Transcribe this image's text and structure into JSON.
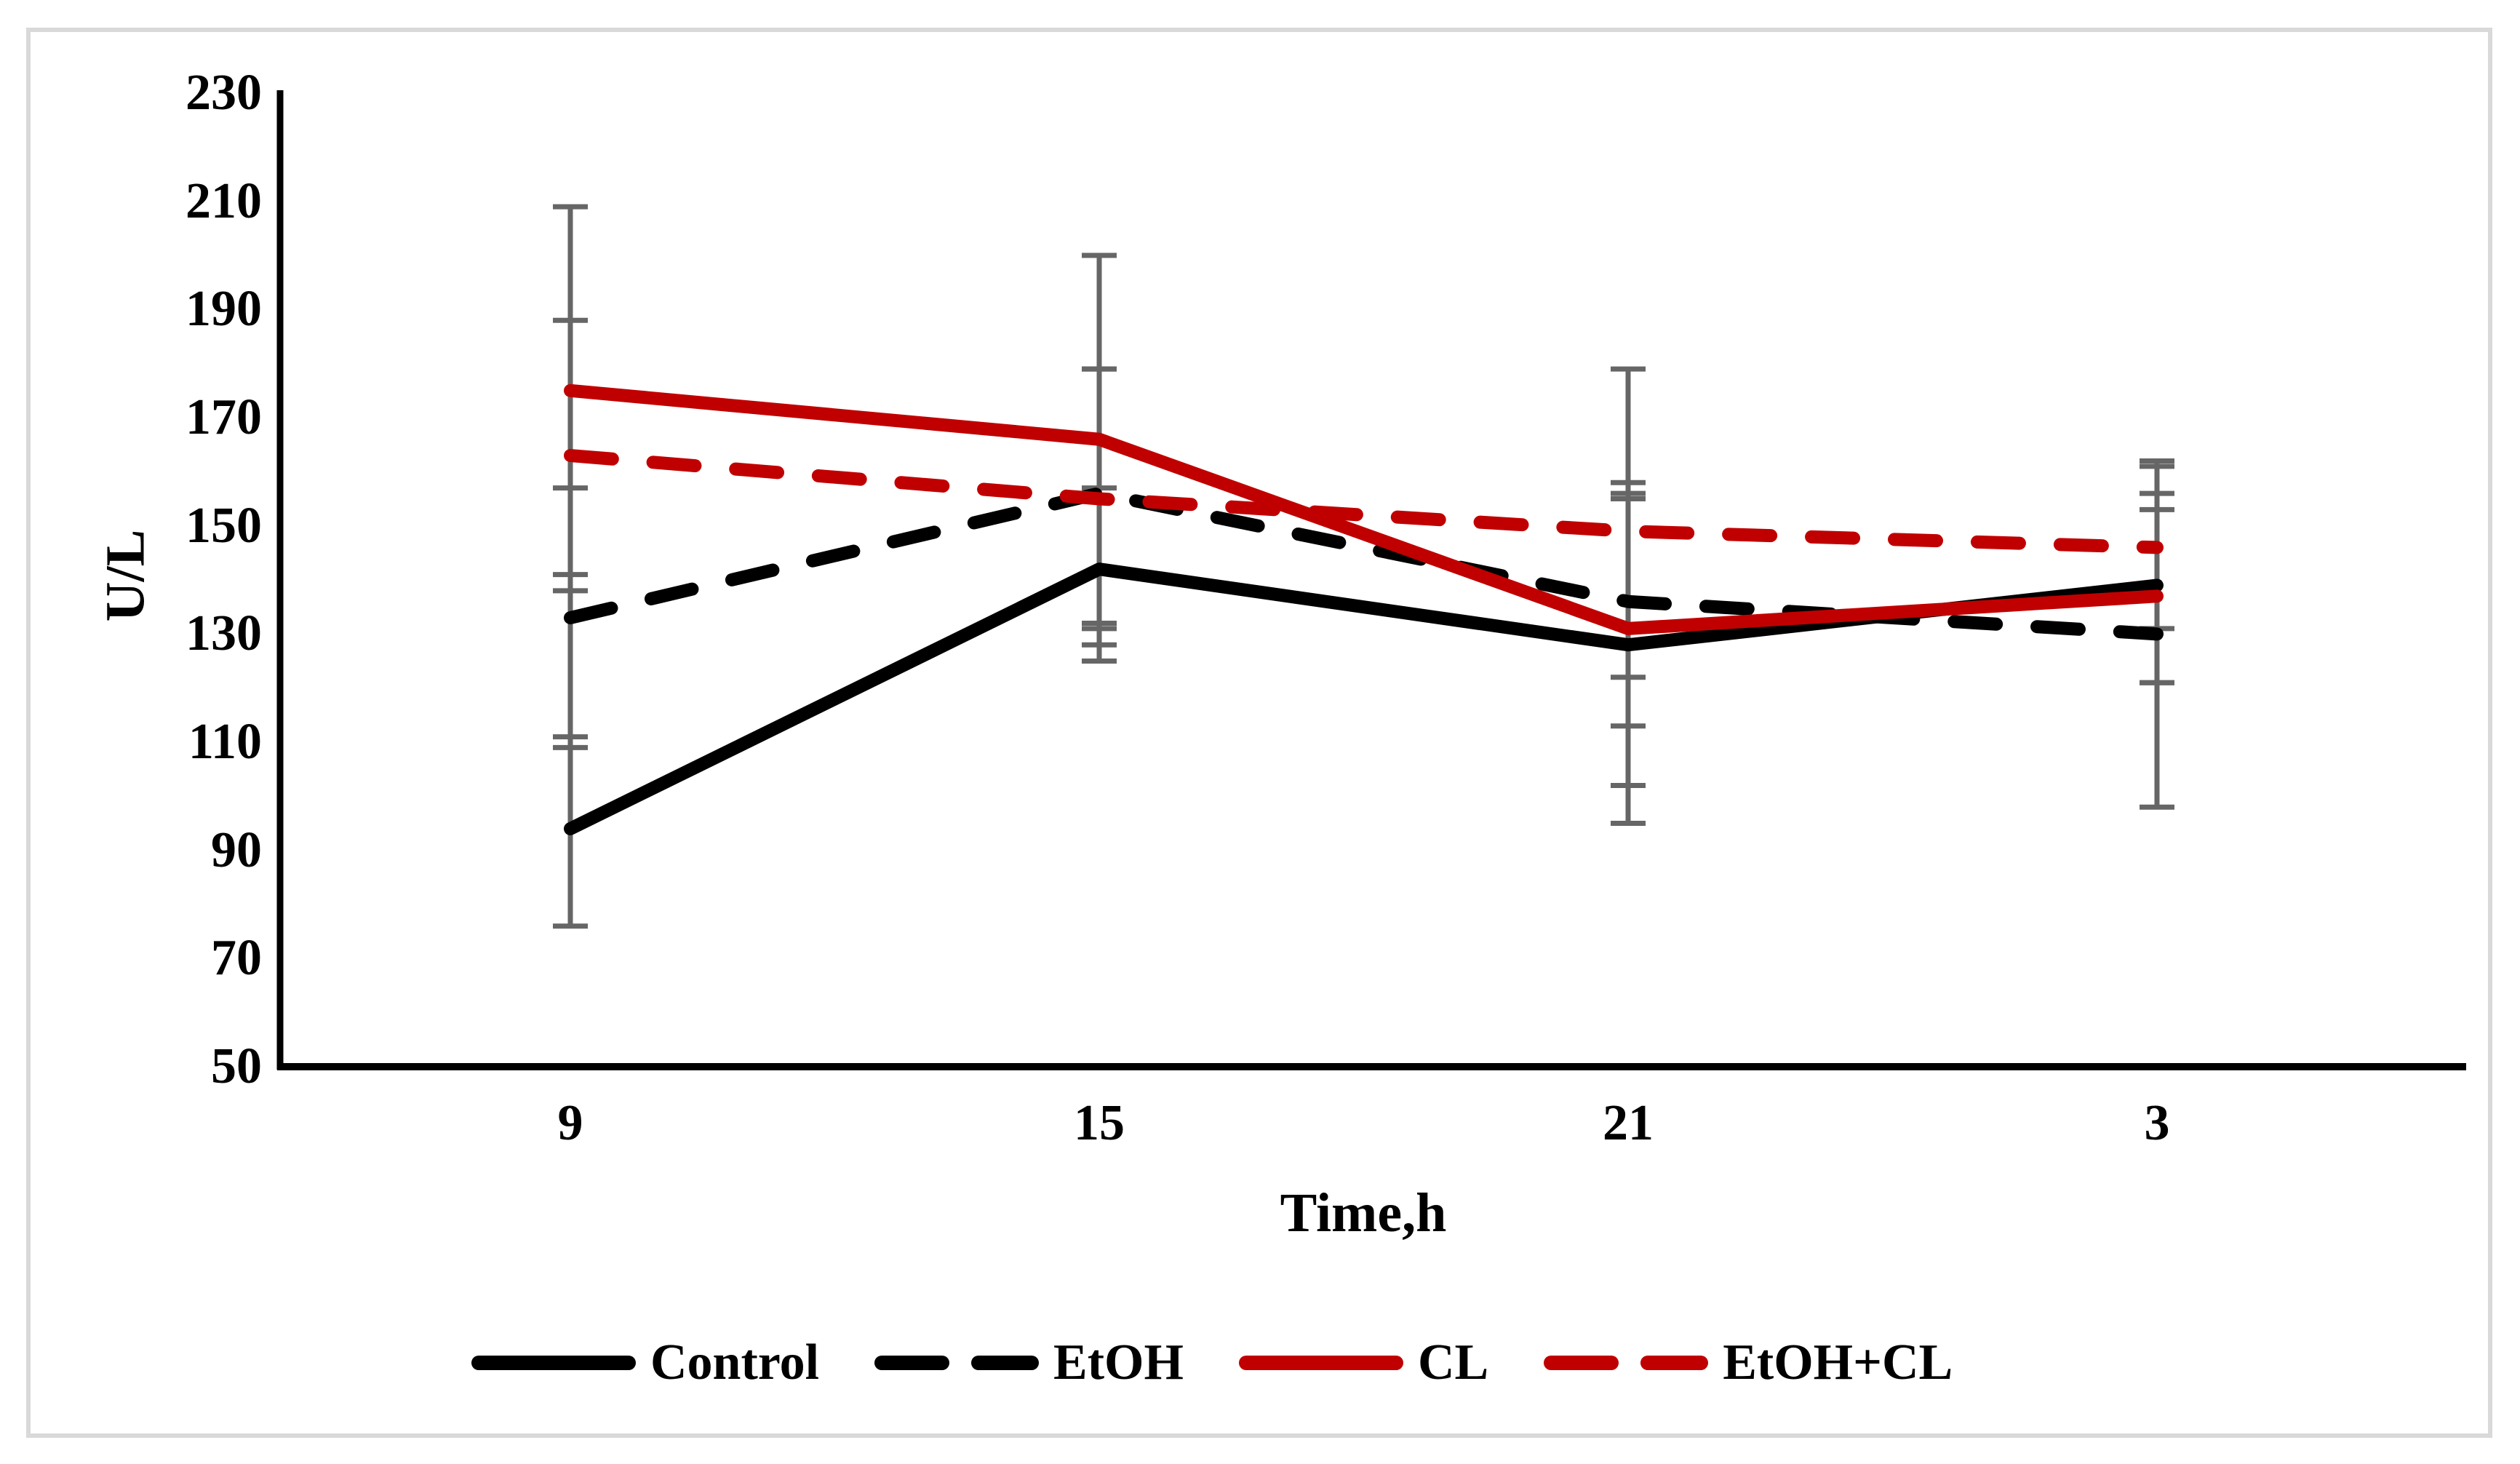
{
  "figure": {
    "background_color": "#FFFFFF",
    "border_color": "#D9D9D9"
  },
  "chart_data": {
    "type": "line",
    "title": "",
    "xlabel": "Time,h",
    "ylabel": "U/L",
    "categories": [
      "9",
      "15",
      "21",
      "3"
    ],
    "ylim": [
      50,
      230
    ],
    "yticks": [
      230,
      210,
      190,
      170,
      150,
      130,
      110,
      90,
      70,
      50
    ],
    "grid": false,
    "legend_position": "bottom",
    "axis_color": "#000000",
    "error_bar_color": "#666666",
    "series": [
      {
        "name": "Control",
        "color": "#000000",
        "dash": false,
        "values": [
          94,
          142,
          128,
          139
        ],
        "err_upper": [
          111,
          157,
          156,
          156
        ],
        "err_lower": [
          76,
          125,
          102,
          121
        ]
      },
      {
        "name": "EtOH",
        "color": "#000000",
        "dash": true,
        "values": [
          133,
          156,
          136,
          130
        ],
        "err_upper": [
          157,
          179,
          158,
          162
        ],
        "err_lower": [
          109,
          131,
          113,
          98
        ]
      },
      {
        "name": "CL",
        "color": "#C00000",
        "dash": false,
        "values": [
          175,
          166,
          131,
          137
        ],
        "err_upper": [
          209,
          200,
          155,
          153
        ],
        "err_lower": [
          141,
          132,
          95,
          121
        ]
      },
      {
        "name": "EtOH+CL",
        "color": "#C00000",
        "dash": true,
        "values": [
          163,
          155,
          149,
          146
        ],
        "err_upper": [
          188,
          179,
          179,
          161
        ],
        "err_lower": [
          138,
          128,
          122,
          131
        ]
      }
    ]
  }
}
